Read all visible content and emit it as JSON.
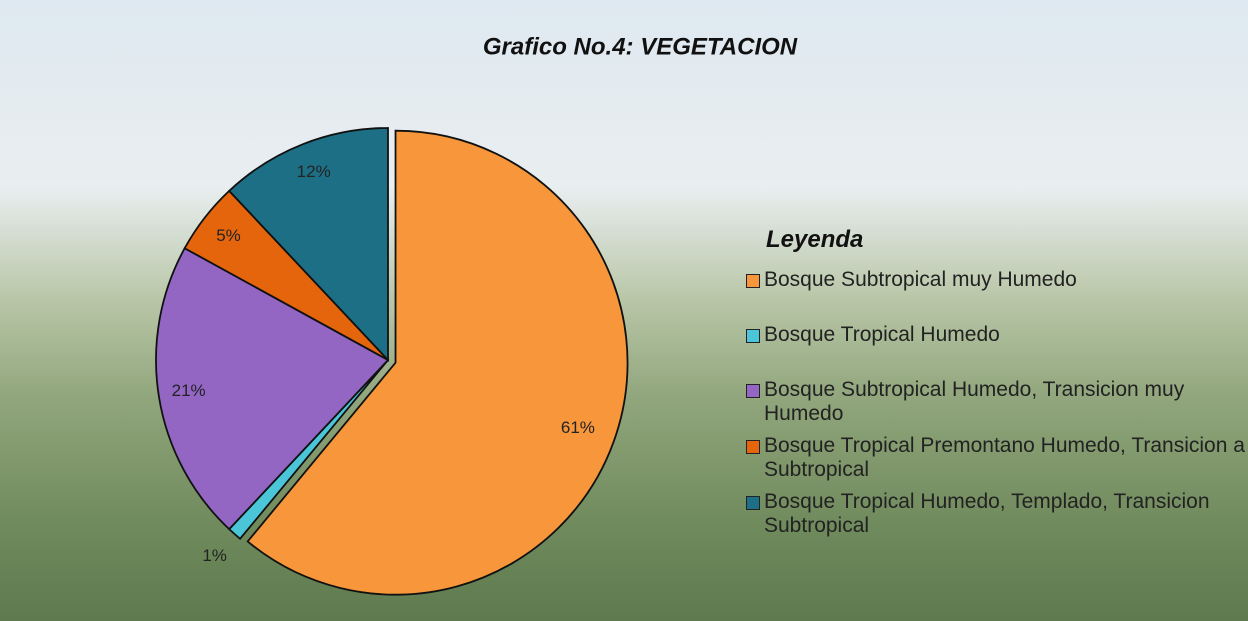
{
  "chart_data": {
    "type": "pie",
    "title": "Grafico No.4: VEGETACION",
    "legend_title": "Leyenda",
    "categories": [
      "Bosque Subtropical muy Humedo",
      "Bosque Tropical Humedo",
      "Bosque Subtropical Humedo, Transicion muy Humedo",
      "Bosque Tropical Premontano Humedo, Transicion a Subtropical",
      "Bosque Tropical Humedo, Templado, Transicion Subtropical"
    ],
    "values": [
      61,
      1,
      21,
      5,
      12
    ],
    "value_labels": [
      "61%",
      "1%",
      "21%",
      "5%",
      "12%"
    ],
    "colors": [
      "#f7963a",
      "#4bc6d8",
      "#9366c4",
      "#e4650c",
      "#1d6f85"
    ],
    "legend": "right"
  }
}
